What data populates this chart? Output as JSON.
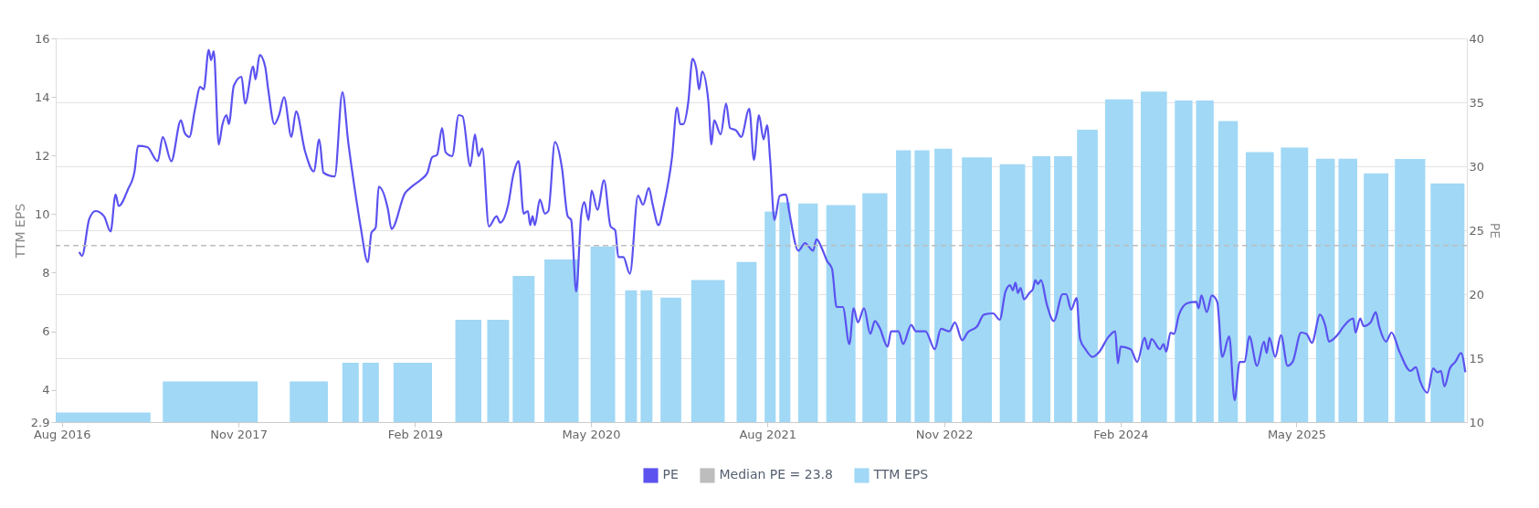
{
  "chart_data": {
    "type": "bar",
    "xlim": [
      "2016-07-16",
      "2026-07-16"
    ],
    "xticks": [
      {
        "value": "2016-08-01",
        "label": "Aug 2016"
      },
      {
        "value": "2017-11-01",
        "label": "Nov 2017"
      },
      {
        "value": "2019-02-01",
        "label": "Feb 2019"
      },
      {
        "value": "2020-05-01",
        "label": "May 2020"
      },
      {
        "value": "2021-08-01",
        "label": "Aug 2021"
      },
      {
        "value": "2022-11-01",
        "label": "Nov 2022"
      },
      {
        "value": "2024-02-01",
        "label": "Feb 2024"
      },
      {
        "value": "2025-05-01",
        "label": "May 2025"
      }
    ],
    "ylabel": "TTM EPS",
    "y2label": "PE",
    "ylim": [
      2.9,
      16
    ],
    "yticks": [
      2.9,
      4,
      6,
      8,
      10,
      12,
      14,
      16
    ],
    "y2lim": [
      10,
      40
    ],
    "y2ticks": [
      10,
      15,
      20,
      25,
      30,
      35,
      40
    ],
    "grid": "y2",
    "legend": "bottom",
    "ref_lines": [
      {
        "axis": "y2",
        "value": 23.8,
        "label": "Median PE = 23.8",
        "color": "#bdbdbd",
        "line_style": "dashed"
      }
    ],
    "series": [
      {
        "name": "PE",
        "type": "line",
        "axis": "y2",
        "color": "#5b52f0",
        "x": [
          "2016-09-15",
          "2016-09-22",
          "2016-10-11",
          "2016-10-27",
          "2016-11-18",
          "2016-12-05",
          "2016-12-18",
          "2016-12-26",
          "2017-01-19",
          "2017-02-05",
          "2017-02-14",
          "2017-03-10",
          "2017-04-06",
          "2017-04-19",
          "2017-05-11",
          "2017-06-05",
          "2017-06-15",
          "2017-06-27",
          "2017-07-11",
          "2017-07-25",
          "2017-08-03",
          "2017-08-16",
          "2017-08-22",
          "2017-08-29",
          "2017-09-11",
          "2017-09-20",
          "2017-10-01",
          "2017-10-07",
          "2017-10-20",
          "2017-11-09",
          "2017-11-18",
          "2017-12-09",
          "2017-12-15",
          "2017-12-26",
          "2018-01-09",
          "2018-01-17",
          "2018-02-02",
          "2018-02-14",
          "2018-02-27",
          "2018-03-18",
          "2018-03-30",
          "2018-04-22",
          "2018-05-15",
          "2018-05-29",
          "2018-06-09",
          "2018-07-08",
          "2018-07-28",
          "2018-08-12",
          "2018-09-01",
          "2018-09-13",
          "2018-10-02",
          "2018-10-11",
          "2018-10-22",
          "2018-10-30",
          "2018-11-23",
          "2018-12-02",
          "2019-01-06",
          "2019-01-23",
          "2019-02-18",
          "2019-03-05",
          "2019-03-17",
          "2019-03-30",
          "2019-04-12",
          "2019-04-21",
          "2019-05-08",
          "2019-05-25",
          "2019-06-04",
          "2019-06-24",
          "2019-07-06",
          "2019-07-15",
          "2019-07-25",
          "2019-08-11",
          "2019-08-31",
          "2019-09-09",
          "2019-09-30",
          "2019-10-13",
          "2019-10-27",
          "2019-11-09",
          "2019-11-20",
          "2019-11-26",
          "2019-12-02",
          "2019-12-08",
          "2019-12-21",
          "2020-01-03",
          "2020-01-12",
          "2020-01-29",
          "2020-02-16",
          "2020-03-02",
          "2020-03-11",
          "2020-03-24",
          "2020-04-06",
          "2020-04-14",
          "2020-04-25",
          "2020-05-03",
          "2020-05-18",
          "2020-06-04",
          "2020-06-21",
          "2020-07-03",
          "2020-07-11",
          "2020-07-24",
          "2020-08-10",
          "2020-08-31",
          "2020-09-13",
          "2020-09-28",
          "2020-10-08",
          "2020-10-23",
          "2020-11-06",
          "2020-11-27",
          "2020-12-10",
          "2020-12-18",
          "2020-12-26",
          "2021-01-08",
          "2021-01-19",
          "2021-01-29",
          "2021-02-05",
          "2021-02-13",
          "2021-03-01",
          "2021-03-09",
          "2021-03-16",
          "2021-04-02",
          "2021-04-16",
          "2021-04-26",
          "2021-05-12",
          "2021-05-25",
          "2021-06-15",
          "2021-06-27",
          "2021-07-10",
          "2021-07-22",
          "2021-07-31",
          "2021-08-08",
          "2021-08-19",
          "2021-09-02",
          "2021-09-18",
          "2021-09-26",
          "2021-10-20",
          "2021-11-06",
          "2021-11-27",
          "2021-12-06",
          "2021-12-21",
          "2022-01-02",
          "2022-01-15",
          "2022-01-27",
          "2022-02-12",
          "2022-03-01",
          "2022-03-12",
          "2022-03-23",
          "2022-04-08",
          "2022-04-24",
          "2022-05-06",
          "2022-05-18",
          "2022-06-08",
          "2022-06-17",
          "2022-07-06",
          "2022-07-18",
          "2022-08-08",
          "2022-08-20",
          "2022-09-14",
          "2022-10-08",
          "2022-10-24",
          "2022-11-15",
          "2022-11-29",
          "2022-12-18",
          "2023-01-01",
          "2023-01-26",
          "2023-02-12",
          "2023-03-08",
          "2023-03-25",
          "2023-04-09",
          "2023-04-21",
          "2023-04-28",
          "2023-05-05",
          "2023-05-11",
          "2023-05-18",
          "2023-05-27",
          "2023-06-10",
          "2023-06-19",
          "2023-06-25",
          "2023-07-02",
          "2023-07-10",
          "2023-07-25",
          "2023-08-12",
          "2023-09-04",
          "2023-09-13",
          "2023-09-26",
          "2023-10-10",
          "2023-10-19",
          "2023-11-02",
          "2023-11-20",
          "2023-12-08",
          "2023-12-30",
          "2024-01-18",
          "2024-01-25",
          "2024-02-01",
          "2024-02-27",
          "2024-03-15",
          "2024-04-03",
          "2024-04-12",
          "2024-04-21",
          "2024-05-13",
          "2024-05-22",
          "2024-05-29",
          "2024-06-09",
          "2024-06-18",
          "2024-07-01",
          "2024-07-23",
          "2024-08-15",
          "2024-08-21",
          "2024-08-28",
          "2024-09-11",
          "2024-09-24",
          "2024-10-08",
          "2024-10-21",
          "2024-11-08",
          "2024-11-22",
          "2024-12-05",
          "2024-12-18",
          "2024-12-30",
          "2025-01-19",
          "2025-02-06",
          "2025-02-13",
          "2025-02-20",
          "2025-03-07",
          "2025-03-22",
          "2025-04-08",
          "2025-04-21",
          "2025-05-13",
          "2025-05-27",
          "2025-06-10",
          "2025-07-01",
          "2025-07-15",
          "2025-07-24",
          "2025-08-20",
          "2025-08-29",
          "2025-09-25",
          "2025-10-01",
          "2025-10-13",
          "2025-10-22",
          "2025-11-09",
          "2025-11-22",
          "2025-12-01",
          "2025-12-19",
          "2026-01-02",
          "2026-01-24",
          "2026-02-20",
          "2026-03-06",
          "2026-03-17",
          "2026-04-05",
          "2026-04-20",
          "2026-05-01",
          "2026-05-10",
          "2026-05-19",
          "2026-06-02",
          "2026-06-16",
          "2026-07-01",
          "2026-07-12"
        ],
        "values": [
          23.3,
          23.0,
          25.9,
          26.5,
          26.1,
          24.9,
          27.8,
          26.9,
          28.2,
          29.6,
          31.6,
          31.5,
          30.4,
          32.3,
          30.4,
          33.6,
          32.6,
          32.3,
          34.4,
          36.2,
          36.0,
          39.1,
          38.3,
          39.0,
          31.7,
          33.2,
          34.0,
          33.3,
          36.3,
          37.0,
          34.9,
          37.8,
          36.8,
          38.7,
          37.8,
          36.0,
          33.3,
          34.0,
          35.4,
          32.3,
          34.3,
          31.2,
          29.6,
          32.1,
          29.5,
          29.2,
          35.8,
          31.9,
          27.6,
          25.3,
          22.5,
          24.8,
          25.2,
          28.4,
          26.6,
          25.1,
          27.9,
          28.4,
          29.0,
          29.5,
          30.7,
          30.9,
          33.0,
          31.1,
          30.8,
          34.0,
          33.9,
          30.0,
          32.5,
          30.8,
          31.4,
          25.3,
          26.1,
          25.6,
          27.0,
          29.3,
          30.4,
          26.3,
          26.5,
          25.4,
          26.1,
          25.4,
          27.4,
          26.3,
          26.5,
          31.9,
          29.9,
          26.1,
          25.8,
          20.2,
          26.2,
          27.2,
          25.8,
          28.1,
          26.6,
          28.9,
          25.3,
          25.0,
          22.9,
          22.9,
          21.6,
          27.7,
          27.0,
          28.3,
          27.0,
          25.4,
          27.0,
          30.7,
          34.6,
          33.3,
          33.3,
          35.0,
          38.4,
          37.6,
          36.0,
          37.4,
          35.1,
          31.7,
          33.6,
          32.5,
          34.9,
          33.0,
          32.8,
          32.3,
          34.5,
          30.5,
          34.0,
          32.1,
          33.2,
          30.5,
          25.8,
          27.7,
          27.8,
          26.5,
          23.4,
          24.0,
          23.4,
          24.3,
          23.5,
          22.6,
          22.0,
          19.0,
          19.0,
          16.1,
          18.9,
          17.8,
          18.9,
          16.9,
          17.9,
          17.4,
          15.9,
          17.1,
          17.1,
          16.1,
          17.6,
          17.1,
          17.1,
          15.7,
          17.3,
          17.1,
          17.8,
          16.4,
          17.0,
          17.5,
          18.4,
          18.5,
          18.0,
          20.2,
          20.7,
          20.3,
          20.9,
          20.1,
          20.5,
          19.6,
          20.1,
          20.4,
          21.1,
          20.8,
          21.1,
          19.2,
          17.9,
          20.0,
          20.0,
          18.8,
          19.7,
          16.5,
          15.7,
          15.1,
          15.5,
          16.6,
          17.1,
          14.6,
          15.9,
          15.7,
          14.7,
          16.6,
          15.7,
          16.5,
          15.7,
          16.1,
          15.5,
          17.0,
          16.9,
          18.4,
          19.3,
          19.4,
          18.9,
          19.9,
          18.6,
          19.9,
          19.4,
          15.1,
          16.7,
          11.7,
          14.7,
          14.7,
          16.7,
          14.4,
          16.3,
          15.4,
          16.6,
          15.1,
          16.8,
          14.4,
          14.7,
          17.0,
          16.9,
          16.2,
          18.4,
          17.5,
          16.3,
          17.0,
          17.4,
          18.1,
          17.0,
          18.1,
          17.5,
          17.8,
          18.6,
          17.5,
          16.3,
          17.0,
          15.4,
          14.0,
          14.3,
          13.2,
          12.3,
          14.2,
          13.9,
          14.0,
          12.8,
          14.2,
          14.7,
          15.4,
          13.9
        ]
      },
      {
        "name": "TTM EPS",
        "color": "#a0d8f5",
        "x": [
          "2016-10-24",
          "2017-08-20",
          "2018-05-02",
          "2018-08-18",
          "2018-10-09",
          "2019-01-26",
          "2019-06-19",
          "2019-09-04",
          "2019-11-09",
          "2020-02-15",
          "2020-06-01",
          "2020-08-13",
          "2020-09-22",
          "2020-11-24",
          "2021-02-28",
          "2021-06-08",
          "2021-08-08",
          "2021-09-15",
          "2021-11-14",
          "2022-02-07",
          "2022-05-06",
          "2022-07-19",
          "2022-09-05",
          "2022-10-30",
          "2023-01-25",
          "2023-04-27",
          "2023-07-11",
          "2023-09-05",
          "2023-11-07",
          "2024-01-28",
          "2024-04-27",
          "2024-07-13",
          "2024-09-06",
          "2024-11-05",
          "2025-01-26",
          "2025-04-26",
          "2025-07-15",
          "2025-09-11",
          "2025-11-23",
          "2026-02-19",
          "2026-05-27"
        ],
        "values": [
          3.23,
          4.29,
          4.29,
          4.93,
          4.93,
          4.93,
          6.39,
          6.39,
          7.89,
          8.45,
          8.9,
          7.4,
          7.4,
          7.15,
          7.75,
          8.37,
          10.09,
          10.4,
          10.36,
          10.31,
          10.71,
          12.18,
          12.18,
          12.23,
          11.94,
          11.7,
          11.98,
          11.98,
          12.88,
          13.92,
          14.18,
          13.88,
          13.88,
          13.18,
          12.12,
          12.27,
          11.89,
          11.89,
          11.39,
          11.88,
          11.05
        ]
      }
    ]
  }
}
